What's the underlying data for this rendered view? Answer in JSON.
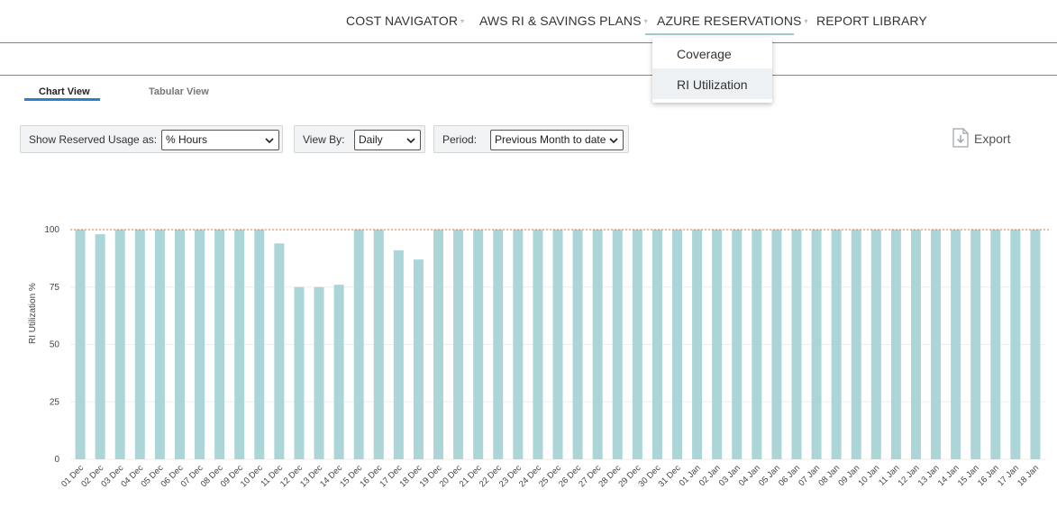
{
  "nav": {
    "items": [
      {
        "label": "COST NAVIGATOR",
        "caret": "▾"
      },
      {
        "label": "AWS RI & SAVINGS PLANS",
        "caret": "▾"
      },
      {
        "label": "AZURE RESERVATIONS",
        "caret": "▾"
      },
      {
        "label": "REPORT LIBRARY",
        "caret": ""
      }
    ],
    "active_index": 2,
    "dropdown": {
      "items": [
        "Coverage",
        "RI Utilization"
      ],
      "hovered_index": 1
    }
  },
  "tabs": {
    "chart_view": "Chart View",
    "tabular_view": "Tabular View",
    "active": "chart_view"
  },
  "filters": {
    "usage": {
      "label": "Show Reserved Usage as:",
      "value": "% Hours"
    },
    "view_by": {
      "label": "View By:",
      "value": "Daily"
    },
    "period": {
      "label": "Period:",
      "value": "Previous Month to date"
    }
  },
  "export": {
    "label": "Export",
    "icon": "export-file-icon"
  },
  "chart_data": {
    "type": "bar",
    "ylabel": "RI Utilization %",
    "xlabel": "",
    "ylim": [
      0,
      100
    ],
    "yticks": [
      0,
      25,
      50,
      75,
      100
    ],
    "reference_line": 100,
    "bar_color": "#abd5d7",
    "reference_line_color": "#e07b39",
    "categories": [
      "01 Dec",
      "02 Dec",
      "03 Dec",
      "04 Dec",
      "05 Dec",
      "06 Dec",
      "07 Dec",
      "08 Dec",
      "09 Dec",
      "10 Dec",
      "11 Dec",
      "12 Dec",
      "13 Dec",
      "14 Dec",
      "15 Dec",
      "16 Dec",
      "17 Dec",
      "18 Dec",
      "19 Dec",
      "20 Dec",
      "21 Dec",
      "22 Dec",
      "23 Dec",
      "24 Dec",
      "25 Dec",
      "26 Dec",
      "27 Dec",
      "28 Dec",
      "29 Dec",
      "30 Dec",
      "31 Dec",
      "01 Jan",
      "02 Jan",
      "03 Jan",
      "04 Jan",
      "05 Jan",
      "06 Jan",
      "07 Jan",
      "08 Jan",
      "09 Jan",
      "10 Jan",
      "11 Jan",
      "12 Jan",
      "13 Jan",
      "14 Jan",
      "15 Jan",
      "16 Jan",
      "17 Jan",
      "18 Jan"
    ],
    "values": [
      100,
      98,
      100,
      100,
      100,
      100,
      100,
      100,
      100,
      100,
      94,
      75,
      75,
      76,
      100,
      100,
      91,
      87,
      100,
      100,
      100,
      100,
      100,
      100,
      100,
      100,
      100,
      100,
      100,
      100,
      100,
      100,
      100,
      100,
      100,
      100,
      100,
      100,
      100,
      100,
      100,
      100,
      100,
      100,
      100,
      100,
      100,
      100,
      100
    ],
    "grid": true
  }
}
